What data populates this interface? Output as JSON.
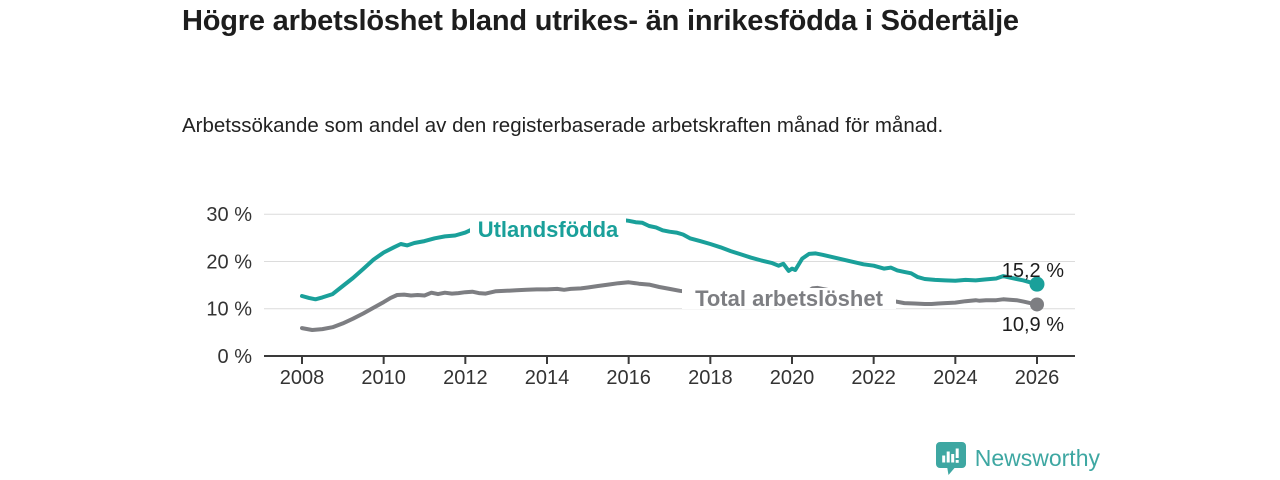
{
  "header": {
    "title": "Högre arbetslöshet bland utrikes- än inrikesfödda i Södertälje",
    "subtitle": "Arbetssökande som andel av den registerbaserade arbetskraften månad för månad."
  },
  "footer": {
    "brand": "Newsworthy",
    "brand_color": "#3ea7a2"
  },
  "chart_data": {
    "type": "line",
    "title": "Högre arbetslöshet bland utrikes- än inrikesfödda i Södertälje",
    "xlabel": "",
    "ylabel": "",
    "grid": "horizontal",
    "x_axis": {
      "ticks": [
        2008,
        2010,
        2012,
        2014,
        2016,
        2018,
        2020,
        2022,
        2024,
        2026
      ],
      "tick_labels": [
        "2008",
        "2010",
        "2012",
        "2014",
        "2016",
        "2018",
        "2020",
        "2022",
        "2024",
        "2026"
      ],
      "range": [
        2007.1,
        2026.9
      ]
    },
    "y_axis": {
      "ticks": [
        0,
        10,
        20,
        30
      ],
      "tick_labels": [
        "0 %",
        "10 %",
        "20 %",
        "30 %"
      ],
      "range": [
        0,
        30
      ]
    },
    "series": [
      {
        "name": "Utlandsfödda",
        "color": "#1aa09a",
        "end_label": "15,2 %",
        "end_value": 15.2,
        "points": [
          [
            2008.0,
            12.7
          ],
          [
            2008.17,
            12.3
          ],
          [
            2008.33,
            12.0
          ],
          [
            2008.5,
            12.4
          ],
          [
            2008.75,
            13.1
          ],
          [
            2009.0,
            14.8
          ],
          [
            2009.25,
            16.5
          ],
          [
            2009.5,
            18.4
          ],
          [
            2009.75,
            20.4
          ],
          [
            2010.0,
            21.9
          ],
          [
            2010.25,
            23.0
          ],
          [
            2010.42,
            23.7
          ],
          [
            2010.58,
            23.4
          ],
          [
            2010.75,
            23.9
          ],
          [
            2011.0,
            24.3
          ],
          [
            2011.25,
            24.9
          ],
          [
            2011.5,
            25.3
          ],
          [
            2011.75,
            25.5
          ],
          [
            2012.0,
            26.1
          ],
          [
            2012.17,
            26.8
          ],
          [
            2012.33,
            25.9
          ],
          [
            2012.58,
            26.0
          ],
          [
            2012.83,
            26.3
          ],
          [
            2013.08,
            26.5
          ],
          [
            2013.33,
            26.7
          ],
          [
            2013.58,
            26.9
          ],
          [
            2013.83,
            27.1
          ],
          [
            2014.08,
            27.3
          ],
          [
            2014.33,
            27.5
          ],
          [
            2014.58,
            27.7
          ],
          [
            2014.83,
            28.0
          ],
          [
            2015.08,
            28.2
          ],
          [
            2015.33,
            28.4
          ],
          [
            2015.58,
            28.6
          ],
          [
            2015.83,
            28.8
          ],
          [
            2016.0,
            28.6
          ],
          [
            2016.17,
            28.3
          ],
          [
            2016.33,
            28.2
          ],
          [
            2016.5,
            27.5
          ],
          [
            2016.67,
            27.2
          ],
          [
            2016.83,
            26.6
          ],
          [
            2017.0,
            26.3
          ],
          [
            2017.17,
            26.1
          ],
          [
            2017.33,
            25.7
          ],
          [
            2017.5,
            24.9
          ],
          [
            2017.75,
            24.3
          ],
          [
            2018.0,
            23.7
          ],
          [
            2018.25,
            23.0
          ],
          [
            2018.5,
            22.2
          ],
          [
            2018.75,
            21.5
          ],
          [
            2019.0,
            20.8
          ],
          [
            2019.25,
            20.2
          ],
          [
            2019.5,
            19.7
          ],
          [
            2019.67,
            19.1
          ],
          [
            2019.79,
            19.5
          ],
          [
            2019.92,
            18.0
          ],
          [
            2020.0,
            18.5
          ],
          [
            2020.08,
            18.2
          ],
          [
            2020.25,
            20.6
          ],
          [
            2020.42,
            21.6
          ],
          [
            2020.58,
            21.7
          ],
          [
            2020.75,
            21.4
          ],
          [
            2021.0,
            20.9
          ],
          [
            2021.25,
            20.4
          ],
          [
            2021.5,
            19.9
          ],
          [
            2021.75,
            19.4
          ],
          [
            2022.0,
            19.1
          ],
          [
            2022.25,
            18.5
          ],
          [
            2022.42,
            18.7
          ],
          [
            2022.58,
            18.1
          ],
          [
            2022.75,
            17.8
          ],
          [
            2022.92,
            17.5
          ],
          [
            2023.08,
            16.7
          ],
          [
            2023.25,
            16.3
          ],
          [
            2023.5,
            16.1
          ],
          [
            2023.75,
            16.0
          ],
          [
            2024.0,
            15.9
          ],
          [
            2024.25,
            16.1
          ],
          [
            2024.5,
            16.0
          ],
          [
            2024.75,
            16.2
          ],
          [
            2025.0,
            16.4
          ],
          [
            2025.17,
            16.9
          ],
          [
            2025.33,
            16.6
          ],
          [
            2025.5,
            16.3
          ],
          [
            2025.67,
            16.0
          ],
          [
            2025.83,
            15.6
          ],
          [
            2026.0,
            15.2
          ]
        ]
      },
      {
        "name": "Total arbetslöshet",
        "color": "#7d7e82",
        "end_label": "10,9 %",
        "end_value": 10.9,
        "points": [
          [
            2008.0,
            5.9
          ],
          [
            2008.25,
            5.5
          ],
          [
            2008.5,
            5.7
          ],
          [
            2008.75,
            6.1
          ],
          [
            2009.0,
            6.9
          ],
          [
            2009.25,
            7.9
          ],
          [
            2009.5,
            9.0
          ],
          [
            2009.75,
            10.2
          ],
          [
            2010.0,
            11.4
          ],
          [
            2010.17,
            12.3
          ],
          [
            2010.33,
            12.9
          ],
          [
            2010.5,
            13.0
          ],
          [
            2010.67,
            12.8
          ],
          [
            2010.83,
            12.9
          ],
          [
            2011.0,
            12.8
          ],
          [
            2011.17,
            13.4
          ],
          [
            2011.33,
            13.1
          ],
          [
            2011.5,
            13.4
          ],
          [
            2011.67,
            13.2
          ],
          [
            2011.83,
            13.3
          ],
          [
            2012.0,
            13.5
          ],
          [
            2012.17,
            13.6
          ],
          [
            2012.33,
            13.3
          ],
          [
            2012.5,
            13.2
          ],
          [
            2012.75,
            13.7
          ],
          [
            2013.0,
            13.8
          ],
          [
            2013.25,
            13.9
          ],
          [
            2013.5,
            14.0
          ],
          [
            2013.75,
            14.1
          ],
          [
            2014.0,
            14.1
          ],
          [
            2014.25,
            14.2
          ],
          [
            2014.42,
            14.0
          ],
          [
            2014.58,
            14.2
          ],
          [
            2014.83,
            14.3
          ],
          [
            2015.0,
            14.5
          ],
          [
            2015.25,
            14.8
          ],
          [
            2015.5,
            15.1
          ],
          [
            2015.75,
            15.4
          ],
          [
            2016.0,
            15.6
          ],
          [
            2016.25,
            15.3
          ],
          [
            2016.5,
            15.1
          ],
          [
            2016.75,
            14.6
          ],
          [
            2017.0,
            14.2
          ],
          [
            2017.25,
            13.8
          ],
          [
            2017.5,
            13.5
          ],
          [
            2017.75,
            13.1
          ],
          [
            2018.0,
            12.8
          ],
          [
            2018.25,
            12.5
          ],
          [
            2018.5,
            12.2
          ],
          [
            2018.75,
            12.0
          ],
          [
            2019.0,
            11.8
          ],
          [
            2019.25,
            11.6
          ],
          [
            2019.5,
            11.4
          ],
          [
            2019.75,
            11.2
          ],
          [
            2020.0,
            11.6
          ],
          [
            2020.25,
            12.9
          ],
          [
            2020.5,
            14.3
          ],
          [
            2020.63,
            14.4
          ],
          [
            2020.75,
            14.2
          ],
          [
            2021.0,
            13.8
          ],
          [
            2021.25,
            13.4
          ],
          [
            2021.5,
            13.0
          ],
          [
            2021.75,
            12.6
          ],
          [
            2022.0,
            12.2
          ],
          [
            2022.25,
            11.9
          ],
          [
            2022.5,
            11.6
          ],
          [
            2022.75,
            11.2
          ],
          [
            2023.0,
            11.1
          ],
          [
            2023.25,
            11.0
          ],
          [
            2023.42,
            11.0
          ],
          [
            2023.58,
            11.1
          ],
          [
            2023.75,
            11.2
          ],
          [
            2024.0,
            11.3
          ],
          [
            2024.25,
            11.6
          ],
          [
            2024.5,
            11.8
          ],
          [
            2024.58,
            11.7
          ],
          [
            2024.75,
            11.8
          ],
          [
            2025.0,
            11.8
          ],
          [
            2025.17,
            12.0
          ],
          [
            2025.33,
            11.9
          ],
          [
            2025.5,
            11.8
          ],
          [
            2025.67,
            11.5
          ],
          [
            2025.83,
            11.2
          ],
          [
            2026.0,
            10.9
          ]
        ]
      }
    ]
  }
}
